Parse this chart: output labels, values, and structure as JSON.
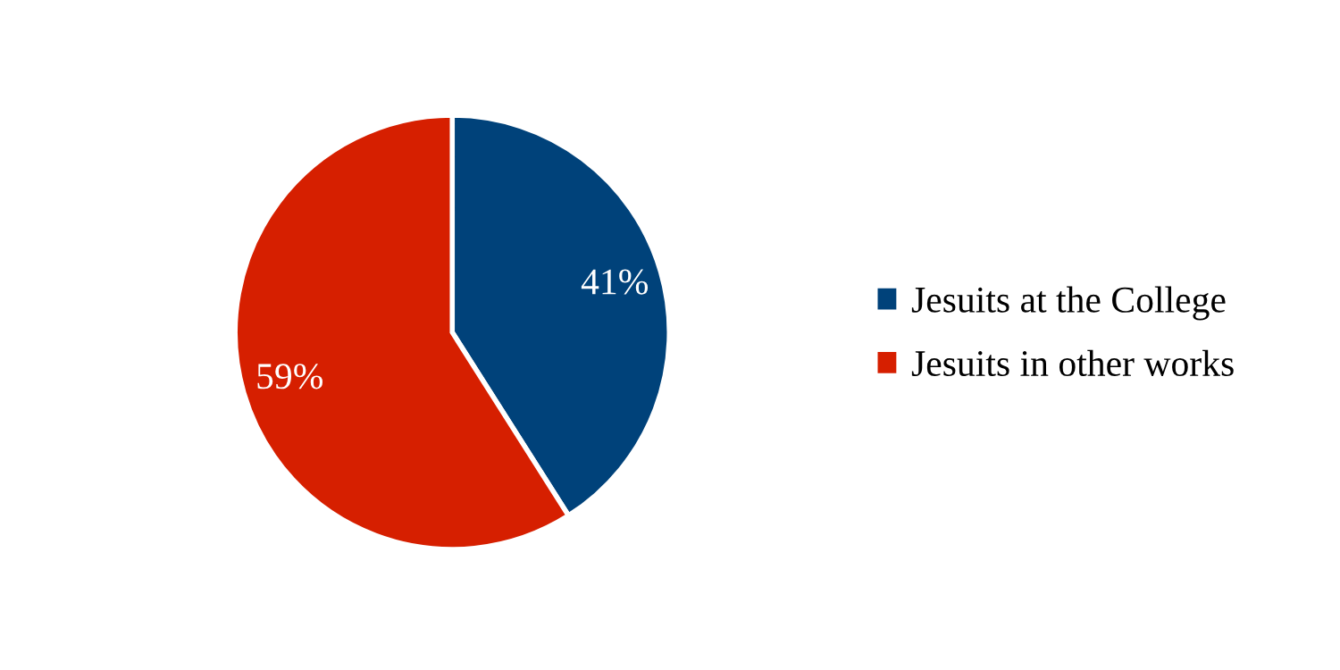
{
  "chart_data": {
    "type": "pie",
    "categories": [
      "Jesuits at the College",
      "Jesuits in other works"
    ],
    "values": [
      41,
      59
    ],
    "colors": [
      "#00427a",
      "#d61f00"
    ],
    "value_labels": [
      "41%",
      "59%"
    ],
    "legend": "right"
  }
}
